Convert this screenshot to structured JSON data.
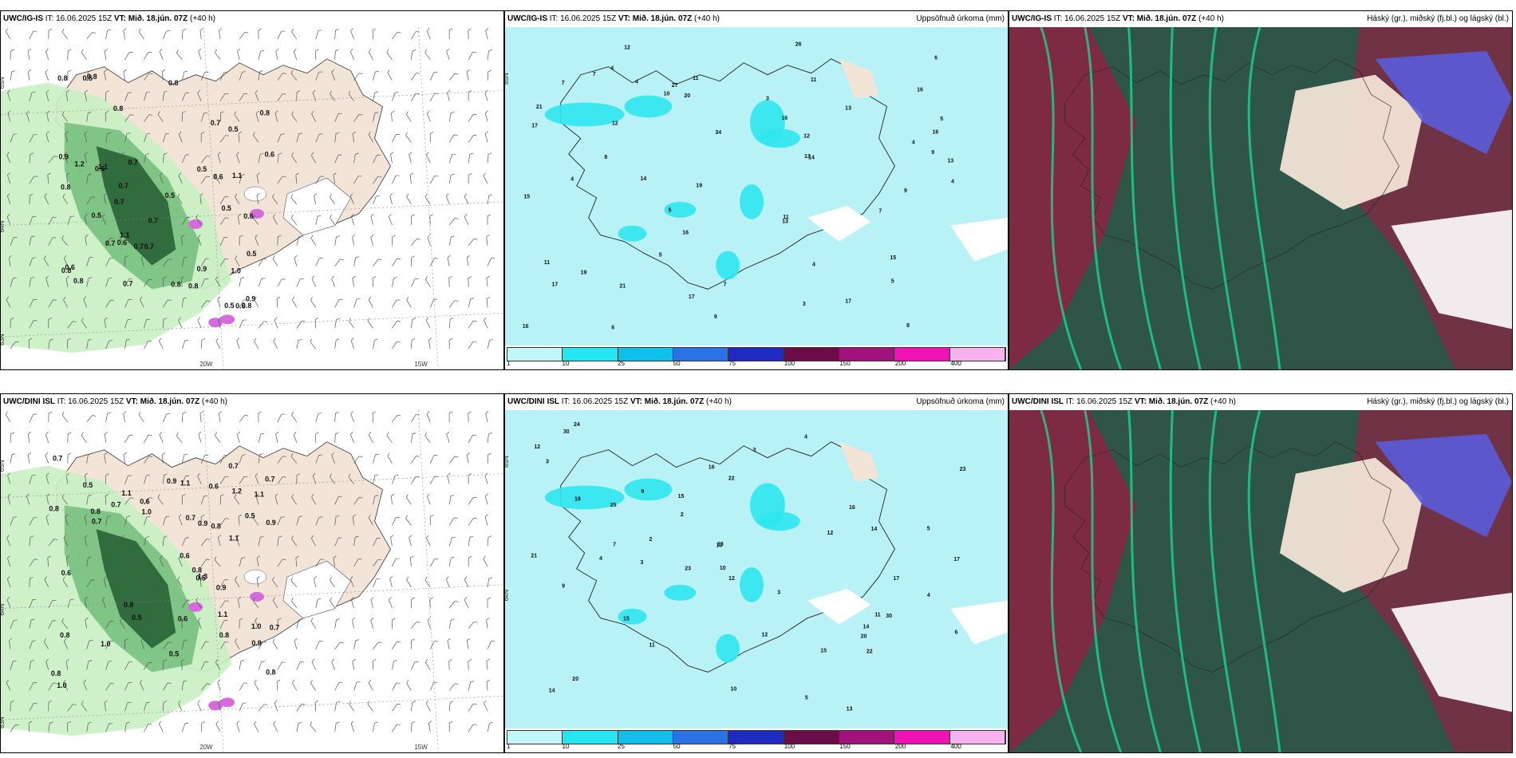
{
  "panels": [
    {
      "id": "p1",
      "model": "UWC/IG-IS",
      "it_label": "IT:",
      "it": "16.06.2025 15Z",
      "vt_label": "VT:",
      "vt": "Mið. 18.jún. 07Z",
      "lead": "(+40 h)",
      "right": "",
      "type": "wind",
      "values": [
        "0.7",
        "0.6",
        "0.5",
        "0.5",
        "0.8",
        "0.8",
        "0.7",
        "0.7",
        "0.6",
        "0.6",
        "1.1",
        "0.8",
        "0.8",
        "0.5",
        "0.7",
        "0.9",
        "0.5",
        "0.6",
        "0.8",
        "0.7",
        "0.6",
        "1.1",
        "0.8",
        "0.7",
        "1.0",
        "0.5",
        "0.8",
        "0.6",
        "0.5",
        "0.8",
        "1.1",
        "0.7",
        "0.8",
        "0.5",
        "0.7",
        "0.9",
        "1.2",
        "0.8",
        "0.5",
        "0.7",
        "0.8",
        "0.9",
        "0.6"
      ],
      "axis": [
        "65N",
        "20W",
        "15W",
        "64N",
        "63N"
      ]
    },
    {
      "id": "p2",
      "model": "UWC/IG-IS",
      "it_label": "IT:",
      "it": "16.06.2025 15Z",
      "vt_label": "VT:",
      "vt": "Mið. 18.jún. 07Z",
      "lead": "(+40 h)",
      "right": "Uppsöfnuð úrkoma (mm)",
      "type": "precip",
      "values": [
        "4",
        "3",
        "7",
        "4",
        "5",
        "4",
        "16",
        "19",
        "17",
        "16",
        "19",
        "16",
        "5",
        "8",
        "7",
        "12",
        "9",
        "11",
        "13",
        "12",
        "8",
        "16",
        "27",
        "21",
        "34",
        "20",
        "17",
        "15",
        "11",
        "6",
        "9",
        "13",
        "14",
        "16",
        "17",
        "17",
        "26",
        "11",
        "13",
        "9",
        "21",
        "12",
        "11",
        "15",
        "14",
        "10",
        "13",
        "7",
        "6",
        "4",
        "4",
        "3",
        "4",
        "5",
        "5",
        "7"
      ],
      "axis": [
        "65N"
      ],
      "cbar_ticks": [
        "1",
        "10",
        "25",
        "50",
        "75",
        "100",
        "150",
        "200",
        "400"
      ]
    },
    {
      "id": "p3",
      "model": "UWC/IG-IS",
      "it_label": "IT:",
      "it": "16.06.2025 15Z",
      "vt_label": "VT:",
      "vt": "Mið. 18.jún. 07Z",
      "lead": "(+40 h)",
      "right": "Háský (gr.), miðský (fj.bl.) og lágský (bl.)",
      "type": "cloud"
    },
    {
      "id": "p4",
      "model": "UWC/DINI ISL",
      "it_label": "IT:",
      "it": "16.06.2025 15Z",
      "vt_label": "VT:",
      "vt": "Mið. 18.jún. 07Z",
      "lead": "(+40 h)",
      "right": "",
      "type": "wind",
      "values": [
        "0.8",
        "1.0",
        "0.6",
        "0.6",
        "0.7",
        "0.8",
        "0.7",
        "0.6",
        "1.1",
        "0.9",
        "0.9",
        "0.8",
        "1.0",
        "0.7",
        "0.8",
        "0.7",
        "0.6",
        "1.2",
        "0.8",
        "0.8",
        "0.5",
        "1.1",
        "1.1",
        "0.5",
        "0.9",
        "0.8",
        "0.7",
        "0.8",
        "0.5",
        "1.3",
        "0.5",
        "1.0",
        "0.6",
        "0.9",
        "0.8",
        "1.0",
        "0.7",
        "1.1",
        "0.5",
        "0.9",
        "0.7",
        "1.1"
      ],
      "axis": [
        "65N",
        "20W",
        "15W",
        "64N",
        "63N"
      ]
    },
    {
      "id": "p5",
      "model": "UWC/DINI ISL",
      "it_label": "IT:",
      "it": "16.06.2025 15Z",
      "vt_label": "VT:",
      "vt": "Mið. 18.jún. 07Z",
      "lead": "(+40 h)",
      "right": "Uppsöfnuð úrkoma (mm)",
      "type": "precip",
      "values": [
        "3",
        "3",
        "2",
        "2",
        "4",
        "5",
        "3",
        "12",
        "15",
        "11",
        "14",
        "17",
        "25",
        "30",
        "16",
        "30",
        "24",
        "13",
        "23",
        "22",
        "15",
        "12",
        "10",
        "18",
        "11",
        "12",
        "10",
        "9",
        "14",
        "12",
        "22",
        "20",
        "16",
        "15",
        "13",
        "23",
        "20",
        "21",
        "14",
        "13",
        "17",
        "9",
        "6",
        "5",
        "7",
        "3",
        "4",
        "4"
      ],
      "axis": [
        "65N",
        "64N"
      ],
      "cbar_ticks": [
        "1",
        "10",
        "25",
        "50",
        "75",
        "100",
        "150",
        "200",
        "400"
      ]
    },
    {
      "id": "p6",
      "model": "UWC/DINI ISL",
      "it_label": "IT:",
      "it": "16.06.2025 15Z",
      "vt_label": "VT:",
      "vt": "Mið. 18.jún. 07Z",
      "lead": "(+40 h)",
      "right": "Háský (gr.), miðský (fj.bl.) og lágský (bl.)",
      "type": "cloud"
    }
  ],
  "colors": {
    "land": "#f2e4d6",
    "ice": "#ffffff",
    "precip_light": "#b8f2f6",
    "precip_mid": "#2fe6ee",
    "precip_heavy": "#14b8e8",
    "wind_light": "#c9efc4",
    "wind_mid": "#5fb36a",
    "wind_dark": "#164d25",
    "wind_magenta": "#d86ae0",
    "cloud_high": "#2f5548",
    "cloud_mid": "#8b2445",
    "cloud_low": "#5a5bd8",
    "cloud_green": "#1fdc94",
    "cbar": [
      "#c2f6fa",
      "#25e5ee",
      "#10c0ea",
      "#2a72e6",
      "#1f2bc0",
      "#6c0d4a",
      "#a0137b",
      "#f012b4",
      "#f7b3ef"
    ]
  }
}
